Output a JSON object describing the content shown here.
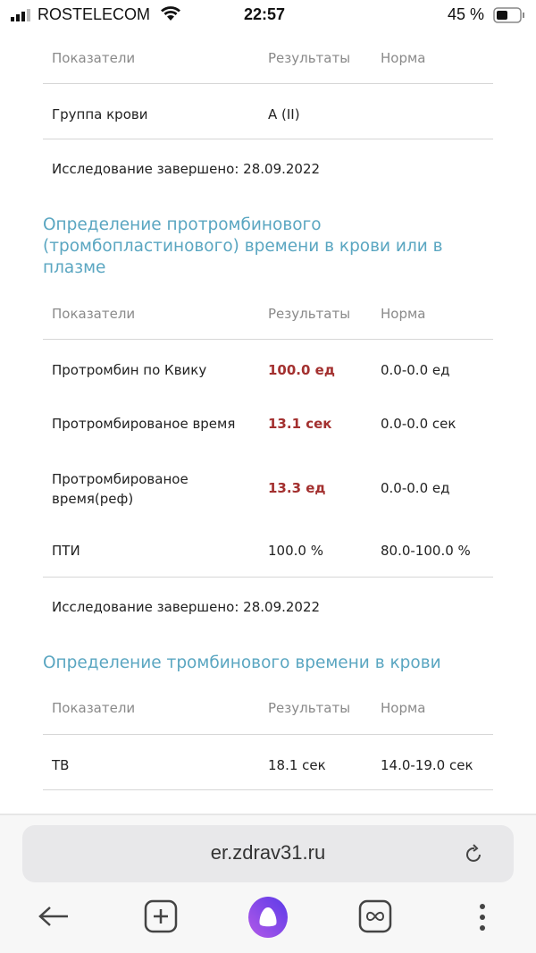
{
  "status": {
    "carrier": "ROSTELECOM",
    "time": "22:57",
    "battery": "45 %",
    "battery_level": 45
  },
  "cols": {
    "param": "Показатели",
    "result": "Результаты",
    "norm": "Норма"
  },
  "section1": {
    "rows": [
      {
        "param": "Группа крови",
        "result": "A (II)",
        "norm": ""
      }
    ],
    "completed": "Исследование завершено: 28.09.2022"
  },
  "section2": {
    "title": "Определение протромбинового (тромбопластинового) времени в крови или в плазме",
    "rows": [
      {
        "param": "Протромбин по Квику",
        "result": "100.0 ед",
        "norm": "0.0-0.0 ед",
        "abnormal": true
      },
      {
        "param": "Протромбированое время",
        "result": "13.1 сек",
        "norm": "0.0-0.0 сек",
        "abnormal": true
      },
      {
        "param": "Протромбированое время(реф)",
        "result": "13.3 ед",
        "norm": "0.0-0.0 ед",
        "abnormal": true
      },
      {
        "param": "ПТИ",
        "result": "100.0 %",
        "norm": "80.0-100.0 %",
        "abnormal": false
      }
    ],
    "completed": "Исследование завершено: 28.09.2022"
  },
  "section3": {
    "title": "Определение тромбинового времени в крови",
    "rows": [
      {
        "param": "ТВ",
        "result": "18.1 сек",
        "norm": "14.0-19.0 сек"
      }
    ]
  },
  "browser": {
    "url": "er.zdrav31.ru"
  },
  "colors": {
    "title": "#5aa6c1",
    "abnormal": "#a3302f"
  }
}
